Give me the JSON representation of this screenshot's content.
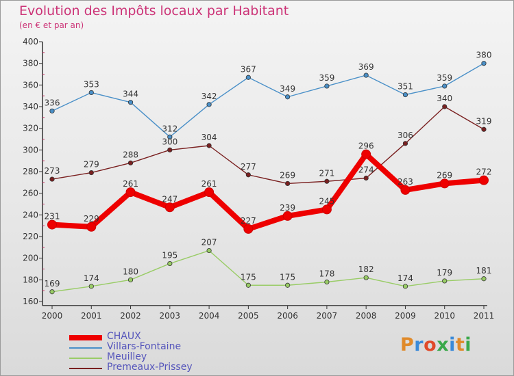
{
  "title": "Evolution des Impôts locaux par Habitant",
  "subtitle": "(en € et par an)",
  "logo": {
    "text": "Proxiti",
    "letter_colors": [
      "#e08a2a",
      "#3a8ad8",
      "#e04a2a",
      "#3aa84a",
      "#3a8ad8",
      "#e08a2a",
      "#3aa84a"
    ]
  },
  "chart_data": {
    "type": "line",
    "x": [
      "2000",
      "2001",
      "2002",
      "2003",
      "2004",
      "2005",
      "2006",
      "2007",
      "2008",
      "2009",
      "2010",
      "2011"
    ],
    "ylim": [
      160,
      400
    ],
    "yticks": [
      160,
      180,
      200,
      220,
      240,
      260,
      280,
      300,
      320,
      340,
      360,
      380,
      400
    ],
    "grid": false,
    "legend_position": "bottom-left",
    "series": [
      {
        "name": "Villars-Fontaine",
        "color": "#4a90c8",
        "values": [
          336,
          353,
          344,
          312,
          342,
          367,
          349,
          359,
          369,
          351,
          359,
          380
        ]
      },
      {
        "name": "Premeaux-Prissey",
        "color": "#7a2020",
        "values": [
          273,
          279,
          288,
          300,
          304,
          277,
          269,
          271,
          274,
          306,
          340,
          319
        ]
      },
      {
        "name": "Meuilley",
        "color": "#99cc66",
        "values": [
          169,
          174,
          180,
          195,
          207,
          175,
          175,
          178,
          182,
          174,
          179,
          181
        ]
      },
      {
        "name": "CHAUX",
        "color": "#ee0000",
        "values": [
          231,
          229,
          261,
          247,
          261,
          227,
          239,
          245,
          296,
          263,
          269,
          272
        ]
      }
    ],
    "legend_order": [
      "CHAUX",
      "Villars-Fontaine",
      "Meuilley",
      "Premeaux-Prissey"
    ]
  }
}
